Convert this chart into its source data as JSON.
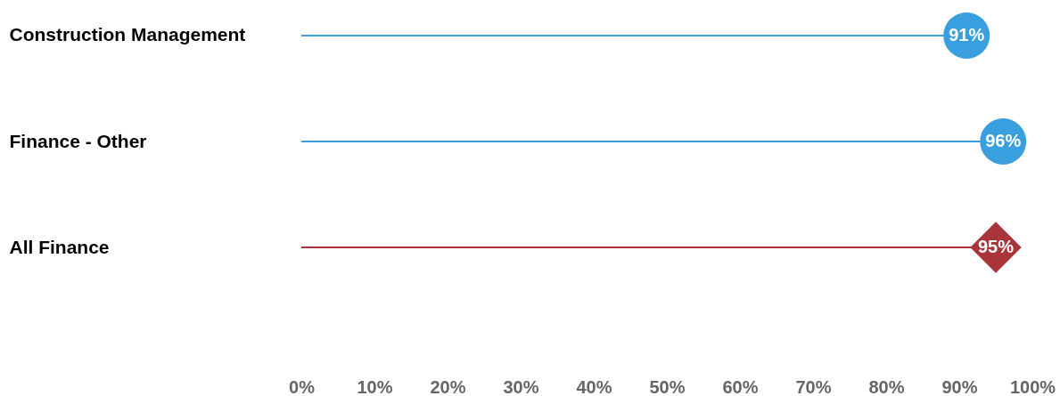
{
  "chart_data": {
    "type": "lollipop",
    "orientation": "horizontal",
    "categories": [
      "Construction Management",
      "Finance - Other",
      "All Finance"
    ],
    "series": [
      {
        "color": "#3a9fdf",
        "marker": "circle",
        "values": [
          91,
          96,
          null
        ],
        "value_labels": [
          "91%",
          "96%",
          null
        ]
      },
      {
        "color": "#a9343a",
        "marker": "diamond",
        "values": [
          null,
          null,
          95
        ],
        "value_labels": [
          null,
          null,
          "95%"
        ]
      }
    ],
    "xlim": [
      0,
      100
    ],
    "xticks": [
      {
        "value": 0,
        "label": "0%"
      },
      {
        "value": 10,
        "label": "10%"
      },
      {
        "value": 20,
        "label": "20%"
      },
      {
        "value": 30,
        "label": "30%"
      },
      {
        "value": 40,
        "label": "40%"
      },
      {
        "value": 50,
        "label": "50%"
      },
      {
        "value": 60,
        "label": "60%"
      },
      {
        "value": 70,
        "label": "70%"
      },
      {
        "value": 80,
        "label": "80%"
      },
      {
        "value": 90,
        "label": "90%"
      },
      {
        "value": 100,
        "label": "100%"
      }
    ]
  }
}
